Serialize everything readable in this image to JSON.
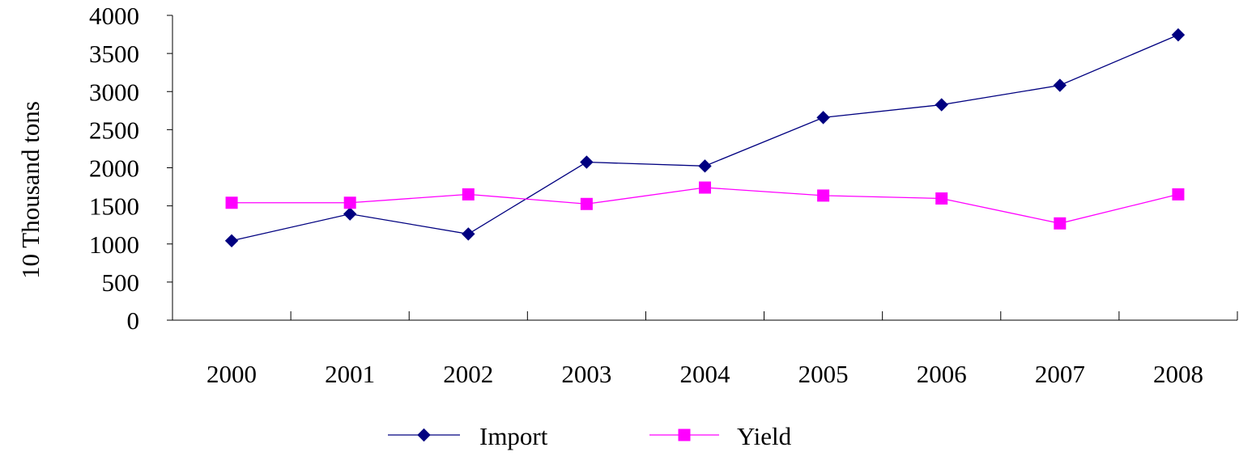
{
  "chart_data": {
    "type": "line",
    "title": "",
    "xlabel": "",
    "ylabel": "10 Thousand tons",
    "categories": [
      "2000",
      "2001",
      "2002",
      "2003",
      "2004",
      "2005",
      "2006",
      "2007",
      "2008"
    ],
    "ylim": [
      0,
      4000
    ],
    "yticks": [
      0,
      500,
      1000,
      1500,
      2000,
      2500,
      3000,
      3500,
      4000
    ],
    "grid": false,
    "legend_position": "bottom",
    "series": [
      {
        "name": "Import",
        "color": "#000080",
        "marker": "diamond",
        "values": [
          1042,
          1394,
          1131,
          2074,
          2023,
          2659,
          2827,
          3082,
          3744
        ]
      },
      {
        "name": "Yield",
        "color": "#ff00ff",
        "marker": "square",
        "values": [
          1541,
          1541,
          1651,
          1525,
          1740,
          1635,
          1597,
          1270,
          1651
        ]
      }
    ]
  }
}
